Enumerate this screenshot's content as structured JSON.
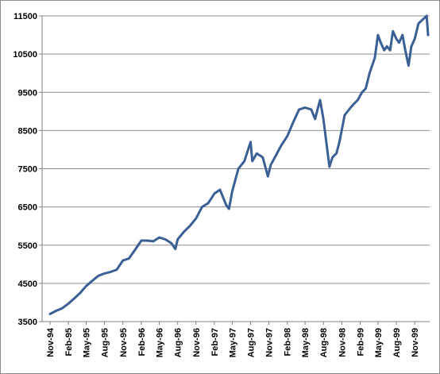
{
  "chart_data": {
    "type": "line",
    "title": "",
    "xlabel": "",
    "ylabel": "",
    "ylim": [
      3500,
      11500
    ],
    "yticks": [
      3500,
      4500,
      5500,
      6500,
      7500,
      8500,
      9500,
      10500,
      11500
    ],
    "ytick_labels": [
      "3500",
      "4500",
      "5500",
      "6500",
      "7500",
      "8500",
      "9500",
      "10500",
      "11500"
    ],
    "xtick_labels": [
      "Nov-94",
      "Feb-95",
      "May-95",
      "Aug-95",
      "Nov-95",
      "Feb-96",
      "May-96",
      "Aug-96",
      "Nov-96",
      "Feb-97",
      "May-97",
      "Aug-97",
      "Nov-97",
      "Feb-98",
      "May-98",
      "Aug-98",
      "Nov-98",
      "Feb-99",
      "May-99",
      "Aug-99",
      "Nov-99"
    ],
    "grid": true,
    "legend": "none",
    "series": [
      {
        "color": "#3a5f95",
        "x": [
          "1994-11-01",
          "1994-12-01",
          "1995-01-01",
          "1995-02-01",
          "1995-03-01",
          "1995-04-01",
          "1995-05-01",
          "1995-06-01",
          "1995-07-01",
          "1995-08-01",
          "1995-09-01",
          "1995-10-01",
          "1995-11-01",
          "1995-12-01",
          "1996-01-01",
          "1996-02-01",
          "1996-03-01",
          "1996-04-01",
          "1996-05-01",
          "1996-06-01",
          "1996-07-01",
          "1996-07-20",
          "1996-08-01",
          "1996-09-01",
          "1996-10-01",
          "1996-11-01",
          "1996-12-01",
          "1997-01-01",
          "1997-02-01",
          "1997-03-01",
          "1997-04-01",
          "1997-04-15",
          "1997-05-01",
          "1997-06-01",
          "1997-07-01",
          "1997-08-01",
          "1997-08-10",
          "1997-09-01",
          "1997-10-01",
          "1997-10-27",
          "1997-11-10",
          "1997-12-01",
          "1998-01-01",
          "1998-02-01",
          "1998-03-01",
          "1998-04-01",
          "1998-05-01",
          "1998-06-01",
          "1998-06-20",
          "1998-07-15",
          "1998-08-01",
          "1998-08-31",
          "1998-09-15",
          "1998-10-05",
          "1998-10-20",
          "1998-11-15",
          "1998-12-15",
          "1999-01-01",
          "1999-01-20",
          "1999-02-10",
          "1999-03-01",
          "1999-03-20",
          "1999-04-15",
          "1999-05-01",
          "1999-05-15",
          "1999-06-01",
          "1999-06-15",
          "1999-07-01",
          "1999-07-15",
          "1999-08-01",
          "1999-08-15",
          "1999-09-01",
          "1999-09-15",
          "1999-10-01",
          "1999-10-15",
          "1999-11-01",
          "1999-11-20",
          "1999-12-10",
          "1999-12-31",
          "2000-01-07"
        ],
        "y": [
          3700,
          3780,
          3850,
          3970,
          4100,
          4250,
          4430,
          4570,
          4700,
          4760,
          4800,
          4860,
          5100,
          5150,
          5380,
          5620,
          5620,
          5600,
          5700,
          5650,
          5550,
          5400,
          5650,
          5850,
          6000,
          6200,
          6500,
          6600,
          6850,
          6950,
          6550,
          6450,
          6900,
          7500,
          7700,
          8200,
          7700,
          7900,
          7800,
          7300,
          7600,
          7800,
          8100,
          8350,
          8700,
          9050,
          9100,
          9050,
          8800,
          9300,
          8800,
          7550,
          7800,
          7900,
          8200,
          8900,
          9100,
          9200,
          9300,
          9500,
          9600,
          10000,
          10400,
          11000,
          10800,
          10600,
          10700,
          10600,
          11100,
          10900,
          10800,
          11000,
          10600,
          10200,
          10700,
          10900,
          11300,
          11400,
          11500,
          11000
        ]
      }
    ]
  }
}
